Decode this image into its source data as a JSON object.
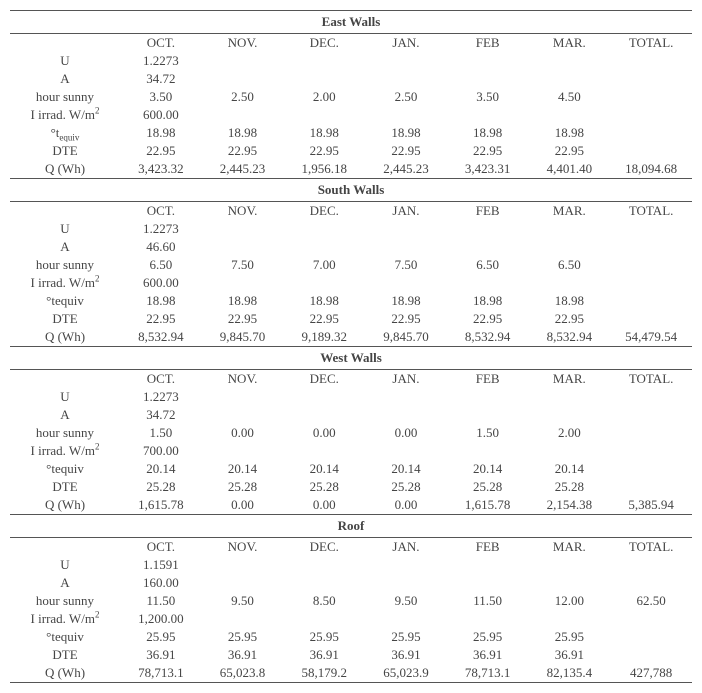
{
  "columns": [
    "OCT.",
    "NOV.",
    "DEC.",
    "JAN.",
    "FEB",
    "MAR.",
    "TOTAL."
  ],
  "sections": [
    {
      "title": "East Walls",
      "rows": [
        {
          "label": "U",
          "vals": [
            "1.2273",
            "",
            "",
            "",
            "",
            "",
            ""
          ]
        },
        {
          "label": "A",
          "vals": [
            "34.72",
            "",
            "",
            "",
            "",
            "",
            ""
          ]
        },
        {
          "label": "hour sunny",
          "vals": [
            "3.50",
            "2.50",
            "2.00",
            "2.50",
            "3.50",
            "4.50",
            ""
          ]
        },
        {
          "label": "I irrad. W/m²",
          "html": true,
          "labelHtml": "I irrad. W/m<sup>2</sup>",
          "vals": [
            "600.00",
            "",
            "",
            "",
            "",
            "",
            ""
          ]
        },
        {
          "label": "°t_equiv",
          "html": true,
          "labelHtml": "°t<sub>equiv</sub>",
          "vals": [
            "18.98",
            "18.98",
            "18.98",
            "18.98",
            "18.98",
            "18.98",
            ""
          ]
        },
        {
          "label": "DTE",
          "vals": [
            "22.95",
            "22.95",
            "22.95",
            "22.95",
            "22.95",
            "22.95",
            ""
          ]
        },
        {
          "label": "Q (Wh)",
          "vals": [
            "3,423.32",
            "2,445.23",
            "1,956.18",
            "2,445.23",
            "3,423.31",
            "4,401.40",
            "18,094.68"
          ]
        }
      ]
    },
    {
      "title": "South Walls",
      "rows": [
        {
          "label": "U",
          "vals": [
            "1.2273",
            "",
            "",
            "",
            "",
            "",
            ""
          ]
        },
        {
          "label": "A",
          "vals": [
            "46.60",
            "",
            "",
            "",
            "",
            "",
            ""
          ]
        },
        {
          "label": "hour sunny",
          "vals": [
            "6.50",
            "7.50",
            "7.00",
            "7.50",
            "6.50",
            "6.50",
            ""
          ]
        },
        {
          "label": "I irrad. W/m²",
          "html": true,
          "labelHtml": "I irrad. W/m<sup>2</sup>",
          "vals": [
            "600.00",
            "",
            "",
            "",
            "",
            "",
            ""
          ]
        },
        {
          "label": "°tequiv",
          "vals": [
            "18.98",
            "18.98",
            "18.98",
            "18.98",
            "18.98",
            "18.98",
            ""
          ]
        },
        {
          "label": "DTE",
          "vals": [
            "22.95",
            "22.95",
            "22.95",
            "22.95",
            "22.95",
            "22.95",
            ""
          ]
        },
        {
          "label": "Q (Wh)",
          "vals": [
            "8,532.94",
            "9,845.70",
            "9,189.32",
            "9,845.70",
            "8,532.94",
            "8,532.94",
            "54,479.54"
          ]
        }
      ]
    },
    {
      "title": "West Walls",
      "rows": [
        {
          "label": "U",
          "vals": [
            "1.2273",
            "",
            "",
            "",
            "",
            "",
            ""
          ]
        },
        {
          "label": "A",
          "vals": [
            "34.72",
            "",
            "",
            "",
            "",
            "",
            ""
          ]
        },
        {
          "label": "hour sunny",
          "vals": [
            "1.50",
            "0.00",
            "0.00",
            "0.00",
            "1.50",
            "2.00",
            ""
          ]
        },
        {
          "label": "I irrad. W/m²",
          "html": true,
          "labelHtml": "I irrad. W/m<sup>2</sup>",
          "vals": [
            "700.00",
            "",
            "",
            "",
            "",
            "",
            ""
          ]
        },
        {
          "label": "°tequiv",
          "vals": [
            "20.14",
            "20.14",
            "20.14",
            "20.14",
            "20.14",
            "20.14",
            ""
          ]
        },
        {
          "label": "DTE",
          "vals": [
            "25.28",
            "25.28",
            "25.28",
            "25.28",
            "25.28",
            "25.28",
            ""
          ]
        },
        {
          "label": "Q (Wh)",
          "vals": [
            "1,615.78",
            "0.00",
            "0.00",
            "0.00",
            "1,615.78",
            "2,154.38",
            "5,385.94"
          ]
        }
      ]
    },
    {
      "title": "Roof",
      "rows": [
        {
          "label": "U",
          "vals": [
            "1.1591",
            "",
            "",
            "",
            "",
            "",
            ""
          ]
        },
        {
          "label": "A",
          "vals": [
            "160.00",
            "",
            "",
            "",
            "",
            "",
            ""
          ]
        },
        {
          "label": "hour sunny",
          "vals": [
            "11.50",
            "9.50",
            "8.50",
            "9.50",
            "11.50",
            "12.00",
            "62.50"
          ]
        },
        {
          "label": "I irrad. W/m²",
          "html": true,
          "labelHtml": "I irrad. W/m<sup>2</sup>",
          "vals": [
            "1,200.00",
            "",
            "",
            "",
            "",
            "",
            ""
          ]
        },
        {
          "label": "°tequiv",
          "vals": [
            "25.95",
            "25.95",
            "25.95",
            "25.95",
            "25.95",
            "25.95",
            ""
          ]
        },
        {
          "label": "DTE",
          "vals": [
            "36.91",
            "36.91",
            "36.91",
            "36.91",
            "36.91",
            "36.91",
            ""
          ]
        },
        {
          "label": "Q (Wh)",
          "vals": [
            "78,713.1",
            "65,023.8",
            "58,179.2",
            "65,023.9",
            "78,713.1",
            "82,135.4",
            "427,788"
          ]
        }
      ]
    }
  ]
}
